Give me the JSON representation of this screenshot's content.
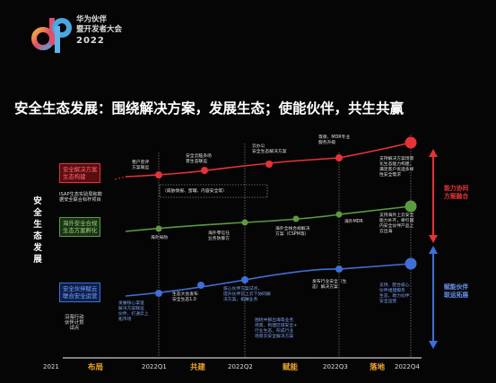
{
  "logo": {
    "line1": "华为伙伴",
    "line2": "暨开发者大会",
    "year": "2022"
  },
  "headline": "安全生态发展：围绕解决方案，发展生态；使能伙伴，共生共赢",
  "vertical_title": "安全生态发展",
  "rows": {
    "solution": {
      "label1": "安全解决方案",
      "label2": "生态构建",
      "sub1": "ISAP生态实验局和数",
      "sub2": "据安全联合标杆项目"
    },
    "overseas": {
      "label1": "海外安全合规",
      "label2": "生态方案孵化"
    },
    "partner": {
      "label1": "安全伙伴赋云",
      "label2": "联合安全运营",
      "sub1": "沿海行动",
      "sub2": "伙伴计划",
      "sub3": "试点"
    }
  },
  "annotations": {
    "r1": [
      "租户密评",
      "方案联运"
    ],
    "r2": [
      "安全云脑多场",
      "景生态联运"
    ],
    "r3": [
      "云办公",
      "安全生态解决方案"
    ],
    "r4": [
      "等保、MDR专业",
      "服务升级"
    ],
    "r5": [
      "支持解决方案场景",
      "化生态能力构建，",
      "满足客户优选多样",
      "性安全需求"
    ],
    "r_box": "（威胁情报、蜜罐、内容安全等）",
    "g1": "海外局防",
    "g2": [
      "海外零信任",
      "业务防御方"
    ],
    "g3": [
      "海外全栈合规解决",
      "方案（CSPM等）"
    ],
    "g4": "海外MDR",
    "g5": [
      "支持海外上云安全",
      "能力补齐，牵引国",
      "内安全伙伴产品上",
      "云出海"
    ],
    "b_top1": [
      "发展核心渠道",
      "解决方案联运",
      "伙伴，打通云上",
      "拓市场"
    ],
    "b_top2": [
      "生态大会发布",
      "安全生态1.0"
    ],
    "b_top3": [
      "核心伙伴方案试点，",
      "提升伙伴云上云下协同解",
      "决方案，拓展业务"
    ],
    "b_top4": [
      "发布行业安全（生",
      "态）解决方案"
    ],
    "b_top5": [
      "支持、配合核心",
      "伙伴组建服务",
      "生态，助力伙伴",
      "安全运营"
    ],
    "b_bot": [
      "围绕中部出海等业务",
      "场景，构建区域安全+",
      "行业生态，形成行业",
      "场景云安全解决方案"
    ]
  },
  "side": {
    "top1": "能力协同",
    "top2": "方案融合",
    "bottom1": "赋能伙伴",
    "bottom2": "联运拓展"
  },
  "timeline": {
    "years": [
      "2021",
      "2022Q1",
      "2022Q2",
      "2022Q3",
      "2022Q4"
    ],
    "phases": [
      "布局",
      "共建",
      "赋能",
      "落地"
    ]
  },
  "colors": {
    "red": "#e63238",
    "green": "#5d9b3f",
    "blue": "#3f6fd6",
    "gold": "#f2a629"
  }
}
